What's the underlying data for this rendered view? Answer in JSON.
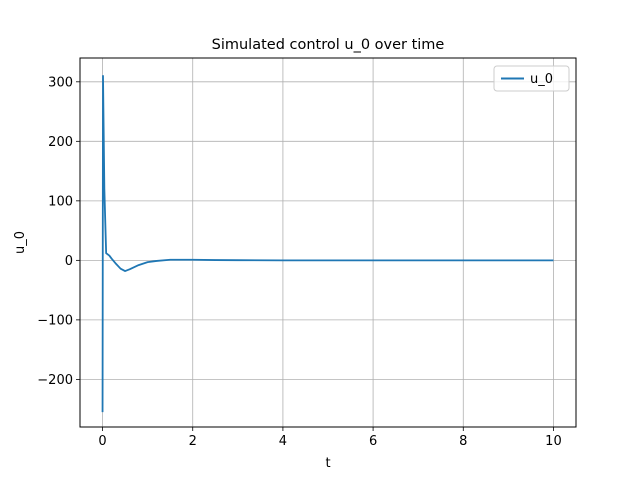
{
  "chart_data": {
    "type": "line",
    "title": "Simulated control u_0 over time",
    "xlabel": "t",
    "ylabel": "u_0",
    "xlim": [
      -0.5,
      10.5
    ],
    "ylim": [
      -280,
      340
    ],
    "xticks": [
      0,
      2,
      4,
      6,
      8,
      10
    ],
    "yticks": [
      -200,
      -100,
      0,
      100,
      200,
      300
    ],
    "xtick_labels": [
      "0",
      "2",
      "4",
      "6",
      "8",
      "10"
    ],
    "ytick_labels": [
      "−200",
      "−100",
      "0",
      "100",
      "200",
      "300"
    ],
    "grid": true,
    "legend": "top-right",
    "series": [
      {
        "name": "u_0",
        "color": "#1f77b4",
        "x": [
          0,
          0.01,
          0.04,
          0.08,
          0.15,
          0.2,
          0.3,
          0.4,
          0.5,
          0.6,
          0.8,
          1.0,
          1.2,
          1.5,
          2.0,
          2.5,
          3.0,
          4.0,
          6.0,
          8.0,
          10.0
        ],
        "y": [
          -255,
          310,
          120,
          12,
          8,
          3,
          -6,
          -14,
          -18,
          -15,
          -8,
          -3,
          -1,
          1,
          1,
          0.5,
          0.3,
          0,
          0,
          0,
          0
        ]
      }
    ]
  }
}
